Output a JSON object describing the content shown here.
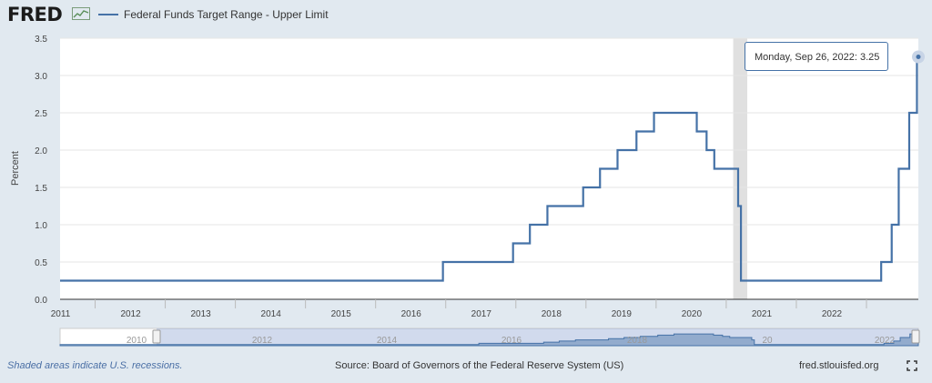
{
  "header": {
    "logo_text": "FRED",
    "legend_label": "Federal Funds Target Range - Upper Limit",
    "series_color": "#4572a7"
  },
  "tooltip": {
    "date": "Monday, Sep 26, 2022:",
    "value": "3.25"
  },
  "footer": {
    "recession_note": "Shaded areas indicate U.S. recessions.",
    "source": "Source: Board of Governors of the Federal Reserve System (US)",
    "site": "fred.stlouisfed.org"
  },
  "navigator": {
    "labels": [
      "2010",
      "2012",
      "2014",
      "2016",
      "2018",
      "20",
      "2022"
    ]
  },
  "chart_data": {
    "type": "line",
    "step": true,
    "title": "",
    "xlabel": "",
    "ylabel": "Percent",
    "ylim": [
      0,
      3.5
    ],
    "xlim": [
      2010.5,
      2022.74
    ],
    "yticks": [
      "0.0",
      "0.5",
      "1.0",
      "1.5",
      "2.0",
      "2.5",
      "3.0",
      "3.5"
    ],
    "xticks": [
      "2011",
      "2012",
      "2013",
      "2014",
      "2015",
      "2016",
      "2017",
      "2018",
      "2019",
      "2020",
      "2021",
      "2022"
    ],
    "recessions": [
      [
        2020.1,
        2020.3
      ]
    ],
    "series": [
      {
        "name": "Federal Funds Target Range - Upper Limit",
        "x": [
          2010.5,
          2015.96,
          2016.96,
          2017.2,
          2017.45,
          2017.96,
          2018.2,
          2018.45,
          2018.72,
          2018.97,
          2019.58,
          2019.72,
          2019.83,
          2020.17,
          2020.21,
          2022.21,
          2022.36,
          2022.46,
          2022.61,
          2022.72,
          2022.74
        ],
        "values": [
          0.25,
          0.5,
          0.75,
          1.0,
          1.25,
          1.5,
          1.75,
          2.0,
          2.25,
          2.5,
          2.25,
          2.0,
          1.75,
          1.25,
          0.25,
          0.5,
          1.0,
          1.75,
          2.5,
          3.25,
          3.25
        ]
      }
    ],
    "highlight_point": {
      "x": 2022.74,
      "y": 3.25
    }
  }
}
